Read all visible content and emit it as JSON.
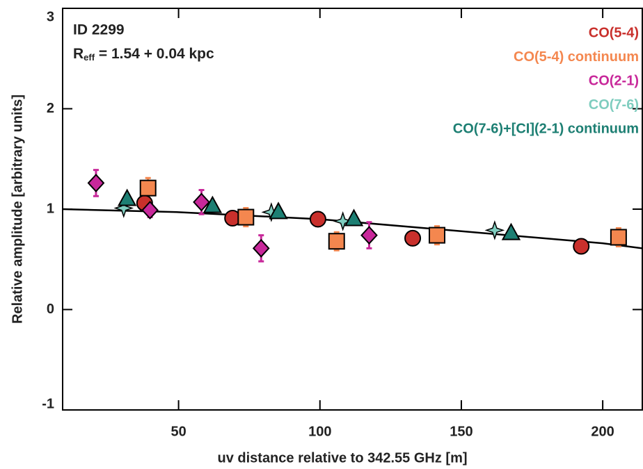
{
  "chart_data": {
    "type": "scatter",
    "annotations": {
      "id": "ID 2299",
      "reff_main": "R",
      "reff_sub": "eff",
      "reff_rest": " = 1.54 + 0.04 kpc"
    },
    "x_label": "uv distance relative to 342.55 GHz [m]",
    "y_label": "Relative amplitude [arbitrary units]",
    "xlim": [
      9,
      214
    ],
    "ylim": [
      -1,
      3
    ],
    "xticks": [
      50,
      100,
      150,
      200
    ],
    "yticks": [
      -1,
      0,
      1,
      2,
      3
    ],
    "series": [
      {
        "name": "CO(5-4)",
        "color": "#c9302c",
        "marker": "circle",
        "x": [
          38.0,
          69.1,
          99.3,
          132.8,
          192.4
        ],
        "values": [
          1.06,
          0.91,
          0.9,
          0.71,
          0.63
        ],
        "errors": [
          0.07,
          0.07,
          0.07,
          0.07,
          0.07
        ]
      },
      {
        "name": "CO(5-4) continuum",
        "color": "#f4874f",
        "marker": "square",
        "x": [
          39.2,
          73.8,
          105.9,
          141.4,
          205.6
        ],
        "values": [
          1.21,
          0.92,
          0.68,
          0.74,
          0.72
        ],
        "errors": [
          0.1,
          0.09,
          0.09,
          0.09,
          0.09
        ]
      },
      {
        "name": "CO(2-1)",
        "color": "#c8289a",
        "marker": "diamond",
        "x": [
          20.8,
          39.9,
          58.1,
          79.2,
          117.4
        ],
        "values": [
          1.26,
          0.99,
          1.07,
          0.61,
          0.74
        ],
        "errors": [
          0.13,
          0.07,
          0.12,
          0.13,
          0.13
        ]
      },
      {
        "name": "CO(7-6)",
        "color": "#7fcdbf",
        "marker": "star",
        "x": [
          30.6,
          82.8,
          108.1,
          161.8
        ],
        "values": [
          1.01,
          0.97,
          0.88,
          0.79
        ]
      },
      {
        "name": "CO(7-6)+[CI](2-1) continuum",
        "color": "#1d7f73",
        "marker": "triangle",
        "x": [
          31.8,
          62.0,
          85.3,
          112.0,
          167.6
        ],
        "values": [
          1.1,
          1.03,
          0.97,
          0.9,
          0.76
        ]
      }
    ],
    "model": {
      "color": "#000000",
      "x": [
        9,
        50,
        100,
        150,
        200,
        214
      ],
      "values": [
        1.0,
        0.97,
        0.9,
        0.78,
        0.66,
        0.61
      ]
    }
  }
}
